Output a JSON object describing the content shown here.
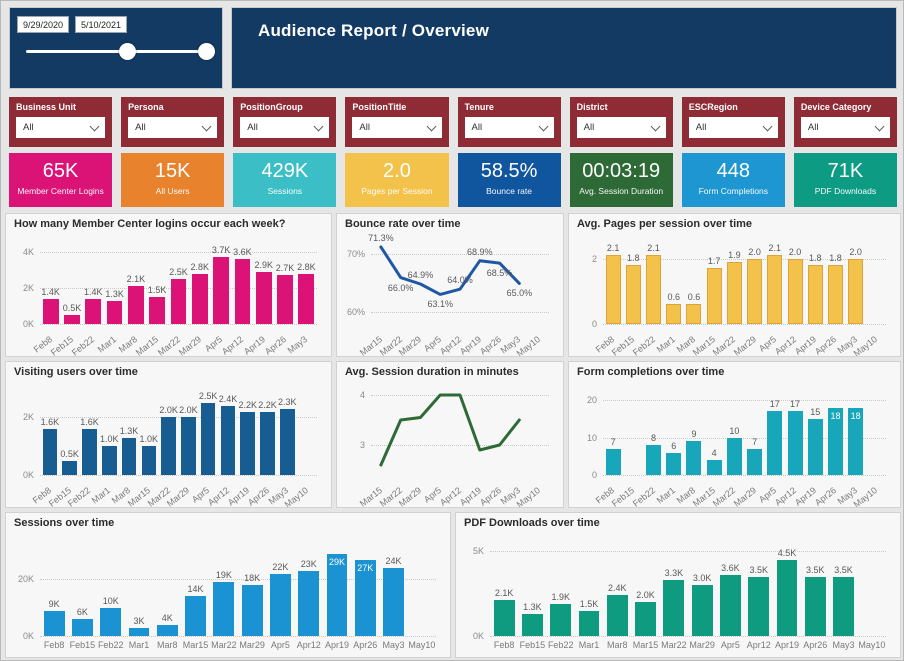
{
  "header": {
    "title": "Audience Report / Overview"
  },
  "date_range": {
    "start": "9/29/2020",
    "end": "5/10/2021"
  },
  "colors": {
    "navy": "#123A63",
    "maroon": "#8E2B35",
    "page_bg": "#E6E6E6",
    "panel_bg": "#F7F7F7"
  },
  "filters": [
    {
      "label": "Business Unit",
      "value": "All"
    },
    {
      "label": "Persona",
      "value": "All"
    },
    {
      "label": "PositionGroup",
      "value": "All"
    },
    {
      "label": "PositionTitle",
      "value": "All"
    },
    {
      "label": "Tenure",
      "value": "All"
    },
    {
      "label": "District",
      "value": "All"
    },
    {
      "label": "ESCRegion",
      "value": "All"
    },
    {
      "label": "Device Category",
      "value": "All"
    }
  ],
  "kpis": [
    {
      "value": "65K",
      "label": "Member Center Logins",
      "color": "#DB1377"
    },
    {
      "value": "15K",
      "label": "All Users",
      "color": "#E8822D"
    },
    {
      "value": "429K",
      "label": "Sessions",
      "color": "#3CBEC6"
    },
    {
      "value": "2.0",
      "label": "Pages per Session",
      "color": "#F2C24A"
    },
    {
      "value": "58.5%",
      "label": "Bounce rate",
      "color": "#10569E"
    },
    {
      "value": "00:03:19",
      "label": "Avg. Session Duration",
      "color": "#2D6A35"
    },
    {
      "value": "448",
      "label": "Form Completions",
      "color": "#1E96D2"
    },
    {
      "value": "71K",
      "label": "PDF Downloads",
      "color": "#0E9B84"
    }
  ],
  "chart_data": [
    {
      "type": "bar",
      "title": "How many Member Center logins occur each week?",
      "color": "#DB1377",
      "angled_x": true,
      "ymax": 4000,
      "yticks": [
        {
          "v": 0,
          "label": "0K"
        },
        {
          "v": 2000,
          "label": "2K"
        },
        {
          "v": 4000,
          "label": "4K"
        }
      ],
      "categories": [
        "Feb8",
        "Feb15",
        "Feb22",
        "Mar1",
        "Mar8",
        "Mar15",
        "Mar22",
        "Mar29",
        "Apr5",
        "Apr12",
        "Apr19",
        "Apr26",
        "May3"
      ],
      "values": [
        1400,
        500,
        1400,
        1300,
        2100,
        1500,
        2500,
        2800,
        3700,
        3600,
        2900,
        2700,
        2800
      ],
      "labels": [
        "1.4K",
        "0.5K",
        "1.4K",
        "1.3K",
        "2.1K",
        "1.5K",
        "2.5K",
        "2.8K",
        "3.7K",
        "3.6K",
        "2.9K",
        "2.7K",
        "2.8K"
      ],
      "label_inside": []
    },
    {
      "type": "line",
      "title": "Bounce rate over time",
      "color": "#1F57A4",
      "angled_x": true,
      "ymin": 58,
      "ymax": 73,
      "yticks": [
        {
          "v": 60,
          "label": "60%"
        },
        {
          "v": 70,
          "label": "70%"
        }
      ],
      "categories": [
        "Mar15",
        "Mar22",
        "Mar29",
        "Apr5",
        "Apr12",
        "Apr19",
        "Apr26",
        "May3",
        "May10"
      ],
      "values": [
        71.3,
        66.0,
        64.9,
        63.1,
        64.0,
        68.9,
        68.5,
        65.0
      ],
      "labels": [
        "71.3%",
        "66.0%",
        "64.9%",
        "63.1%",
        "64.0%",
        "68.9%",
        "68.5%",
        "65.0%"
      ],
      "label_pos": [
        "above",
        "below",
        "above",
        "below",
        "above",
        "above",
        "below",
        "below"
      ]
    },
    {
      "type": "bar",
      "title": "Avg. Pages per session over time",
      "color": "#F2C24A",
      "border": "#DFA23C",
      "angled_x": true,
      "ymax": 2.2,
      "yticks": [
        {
          "v": 0,
          "label": "0"
        },
        {
          "v": 2,
          "label": "2"
        }
      ],
      "categories": [
        "Feb8",
        "Feb15",
        "Feb22",
        "Mar1",
        "Mar8",
        "Mar15",
        "Mar22",
        "Mar29",
        "Apr5",
        "Apr12",
        "Apr19",
        "Apr26",
        "May3",
        "May10"
      ],
      "values": [
        2.1,
        1.8,
        2.1,
        0.6,
        0.6,
        1.7,
        1.9,
        2.0,
        2.1,
        2.0,
        1.8,
        1.8,
        2.0,
        null
      ],
      "labels": [
        "2.1",
        "1.8",
        "2.1",
        "0.6",
        "0.6",
        "1.7",
        "1.9",
        "2.0",
        "2.1",
        "2.0",
        "1.8",
        "1.8",
        "2.0",
        ""
      ],
      "label_inside": []
    },
    {
      "type": "bar",
      "title": "Visiting users over time",
      "color": "#175D92",
      "angled_x": true,
      "ymax": 2600,
      "yticks": [
        {
          "v": 0,
          "label": "0K"
        },
        {
          "v": 2000,
          "label": "2K"
        }
      ],
      "categories": [
        "Feb8",
        "Feb15",
        "Feb22",
        "Mar1",
        "Mar8",
        "Mar15",
        "Mar22",
        "Mar29",
        "Apr5",
        "Apr12",
        "Apr19",
        "Apr26",
        "May3",
        "May10"
      ],
      "values": [
        1600,
        500,
        1600,
        1000,
        1300,
        1000,
        2000,
        2000,
        2500,
        2400,
        2200,
        2200,
        2300,
        null
      ],
      "labels": [
        "1.6K",
        "0.5K",
        "1.6K",
        "1.0K",
        "1.3K",
        "1.0K",
        "2.0K",
        "2.0K",
        "2.5K",
        "2.4K",
        "2.2K",
        "2.2K",
        "2.3K",
        ""
      ],
      "label_inside": []
    },
    {
      "type": "line",
      "title": "Avg. Session duration in minutes",
      "color": "#2D6A35",
      "angled_x": true,
      "ymin": 2.4,
      "ymax": 4.2,
      "yticks": [
        {
          "v": 3,
          "label": "3"
        },
        {
          "v": 4,
          "label": "4"
        }
      ],
      "categories": [
        "Mar15",
        "Mar22",
        "Mar29",
        "Apr5",
        "Apr12",
        "Apr19",
        "Apr26",
        "May3",
        "May10"
      ],
      "values": [
        2.6,
        3.5,
        3.55,
        4.0,
        4.0,
        2.9,
        3.0,
        3.5
      ],
      "labels": [
        "",
        "",
        "",
        "",
        "",
        "",
        "",
        ""
      ],
      "label_pos": [
        "above",
        "above",
        "above",
        "above",
        "above",
        "above",
        "above",
        "above"
      ]
    },
    {
      "type": "bar",
      "title": "Form completions over time",
      "color": "#17A6BA",
      "angled_x": true,
      "ymax": 20,
      "yticks": [
        {
          "v": 0,
          "label": "0"
        },
        {
          "v": 10,
          "label": "10"
        },
        {
          "v": 20,
          "label": "20"
        }
      ],
      "categories": [
        "Feb8",
        "Feb15",
        "Feb22",
        "Mar1",
        "Mar8",
        "Mar15",
        "Mar22",
        "Mar29",
        "Apr5",
        "Apr12",
        "Apr19",
        "Apr26",
        "May3",
        "May10"
      ],
      "values": [
        7,
        null,
        8,
        6,
        9,
        4,
        10,
        7,
        17,
        17,
        15,
        18,
        18,
        null
      ],
      "labels": [
        "7",
        "",
        "8",
        "6",
        "9",
        "4",
        "10",
        "7",
        "17",
        "17",
        "15",
        "18",
        "18",
        ""
      ],
      "label_inside": [
        11,
        12
      ]
    },
    {
      "type": "bar",
      "title": "Sessions over time",
      "color": "#1B93D3",
      "angled_x": false,
      "ymax": 30000,
      "yticks": [
        {
          "v": 0,
          "label": "0K"
        },
        {
          "v": 20000,
          "label": "20K"
        }
      ],
      "categories": [
        "Feb8",
        "Feb15",
        "Feb22",
        "Mar1",
        "Mar8",
        "Mar15",
        "Mar22",
        "Mar29",
        "Apr5",
        "Apr12",
        "Apr19",
        "Apr26",
        "May3",
        "May10"
      ],
      "values": [
        9000,
        6000,
        10000,
        3000,
        4000,
        14000,
        19000,
        18000,
        22000,
        23000,
        29000,
        27000,
        24000,
        null
      ],
      "labels": [
        "9K",
        "6K",
        "10K",
        "3K",
        "4K",
        "14K",
        "19K",
        "18K",
        "22K",
        "23K",
        "29K",
        "27K",
        "24K",
        ""
      ],
      "label_inside": [
        10,
        11
      ]
    },
    {
      "type": "bar",
      "title": "PDF Downloads over time",
      "color": "#0F9B80",
      "angled_x": false,
      "ymax": 5000,
      "yticks": [
        {
          "v": 0,
          "label": "0K"
        },
        {
          "v": 5000,
          "label": "5K"
        }
      ],
      "categories": [
        "Feb8",
        "Feb15",
        "Feb22",
        "Mar1",
        "Mar8",
        "Mar15",
        "Mar22",
        "Mar29",
        "Apr5",
        "Apr12",
        "Apr19",
        "Apr26",
        "May3",
        "May10"
      ],
      "values": [
        2100,
        1300,
        1900,
        1500,
        2400,
        2000,
        3300,
        3000,
        3600,
        3500,
        4500,
        3500,
        3500,
        null
      ],
      "labels": [
        "2.1K",
        "1.3K",
        "1.9K",
        "1.5K",
        "2.4K",
        "2.0K",
        "3.3K",
        "3.0K",
        "3.6K",
        "3.5K",
        "4.5K",
        "3.5K",
        "3.5K",
        ""
      ],
      "label_inside": []
    }
  ]
}
